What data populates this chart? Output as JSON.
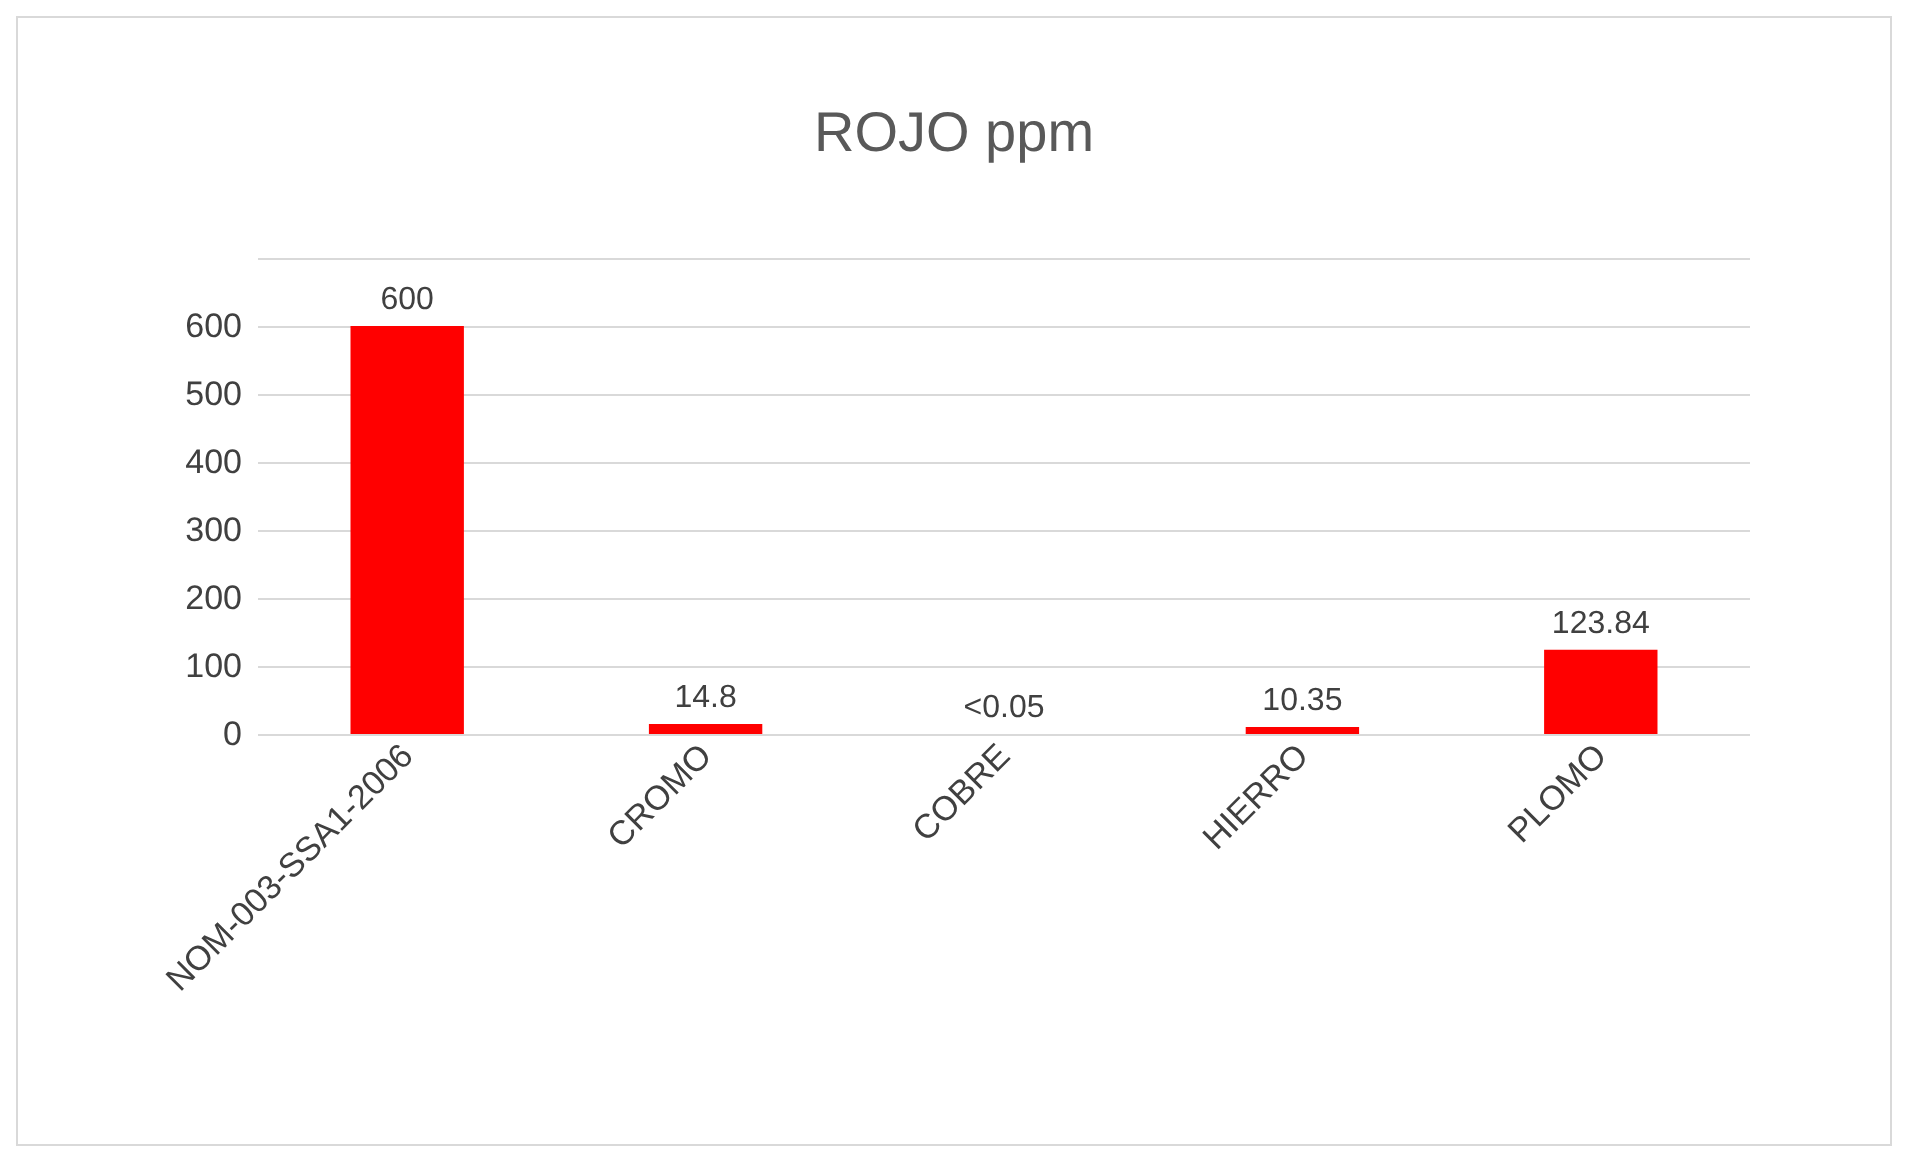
{
  "chart_data": {
    "type": "bar",
    "title": "ROJO ppm",
    "categories": [
      "NOM-003-SSA1-2006",
      "CROMO",
      "COBRE",
      "HIERRO",
      "PLOMO"
    ],
    "values": [
      600,
      14.8,
      0.05,
      10.35,
      123.84
    ],
    "value_labels": [
      "600",
      "14.8",
      "<0.05",
      "10.35",
      "123.84"
    ],
    "color": "#ff0000",
    "ylim": [
      0,
      700
    ],
    "yticks": [
      0,
      100,
      200,
      300,
      400,
      500,
      600,
      {
        "value": 700,
        "label": null
      }
    ],
    "grid": "y"
  }
}
